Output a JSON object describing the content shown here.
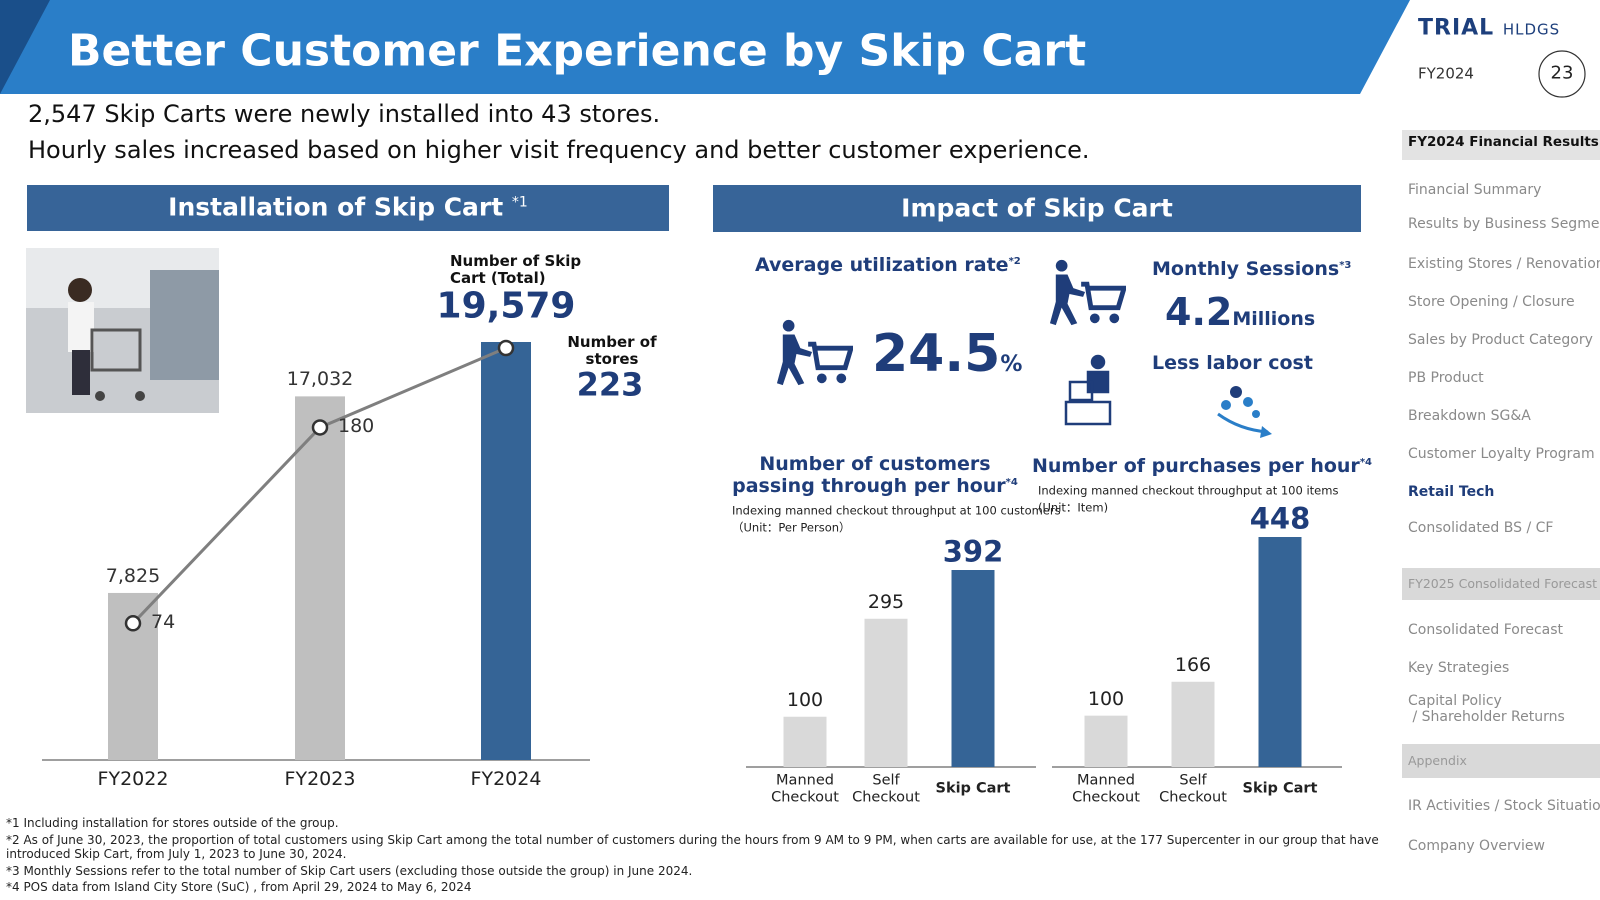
{
  "header": {
    "title": "Better Customer Experience by Skip Cart",
    "logo": "TRIAL",
    "logo_sub": "HLDGS",
    "fiscal_year": "FY2024",
    "page": "23"
  },
  "summary": [
    "2,547 Skip Carts were newly installed into 43 stores.",
    "Hourly sales increased based on higher visit frequency and better customer experience."
  ],
  "impact": {
    "title": "Impact of Skip Cart",
    "kpis": [
      {
        "label": "Average utilization rate",
        "note": "*2",
        "value": "24.5",
        "unit": "%"
      },
      {
        "label": "Monthly Sessions",
        "note": "*3",
        "value": "4.2",
        "unit": "Millions"
      },
      {
        "label": "Less labor cost"
      }
    ]
  },
  "chart_data": [
    {
      "type": "bar",
      "title": "Installation of Skip Cart",
      "title_note": "*1",
      "categories": [
        "FY2022",
        "FY2023",
        "FY2024"
      ],
      "series": [
        {
          "name": "Number of Skip Cart (Total)",
          "type": "bar",
          "values": [
            7825,
            17032,
            19579
          ],
          "value_labels": [
            "7,825",
            "17,032",
            "19,579"
          ],
          "colors": [
            "#bfbfbf",
            "#bfbfbf",
            "#356496"
          ]
        },
        {
          "name": "Number of stores",
          "type": "line",
          "values": [
            74,
            180,
            223
          ],
          "color": "#7f7f7f"
        }
      ]
    },
    {
      "type": "bar",
      "title": "Number of customers passing through per hour",
      "title_note": "*4",
      "subtitle": "Indexing manned checkout throughput at 100 customers",
      "unit": "（Unit：Per Person）",
      "categories": [
        "Manned Checkout",
        "Self Checkout",
        "Skip Cart"
      ],
      "values": [
        100,
        295,
        392
      ],
      "colors": [
        "#d9d9d9",
        "#d9d9d9",
        "#356496"
      ]
    },
    {
      "type": "bar",
      "title": "Number of purchases per hour",
      "title_note": "*4",
      "subtitle": "Indexing manned checkout throughput at 100 items",
      "unit": "(Unit：Item)",
      "categories": [
        "Manned Checkout",
        "Self Checkout",
        "Skip Cart"
      ],
      "values": [
        100,
        166,
        448
      ],
      "colors": [
        "#d9d9d9",
        "#d9d9d9",
        "#356496"
      ]
    }
  ],
  "sidebar": {
    "sections": [
      {
        "title": "FY2024 Financial Results",
        "items": [
          "Financial Summary",
          "Results by Business Segment",
          "Existing Stores / Renovation",
          "Store Opening / Closure",
          "Sales by Product Category",
          "PB Product",
          "Breakdown SG&A",
          "Customer Loyalty Program",
          "Retail Tech",
          "Consolidated BS / CF"
        ]
      },
      {
        "title": "FY2025 Consolidated Forecast",
        "items": [
          "Consolidated Forecast",
          "Key Strategies",
          "Capital Policy\n / Shareholder Returns"
        ]
      },
      {
        "title": "Appendix",
        "items": [
          "IR Activities / Stock Situation",
          "Company Overview"
        ]
      }
    ]
  },
  "footnotes": [
    "*1 Including installation for stores outside of the group.",
    "*2 As of June 30, 2023, the proportion of total customers using Skip Cart among the total number of customers during the hours from 9 AM to 9 PM, when carts are available for use, at the 177 Supercenter in our group that have introduced Skip Cart, from July 1, 2023 to June 30, 2024.",
    "*3 Monthly Sessions refer to the total number of Skip Cart users (excluding those outside the group) in June 2024.",
    "*4 POS data from Island City Store (SuC) , from April 29, 2024 to May 6, 2024"
  ]
}
